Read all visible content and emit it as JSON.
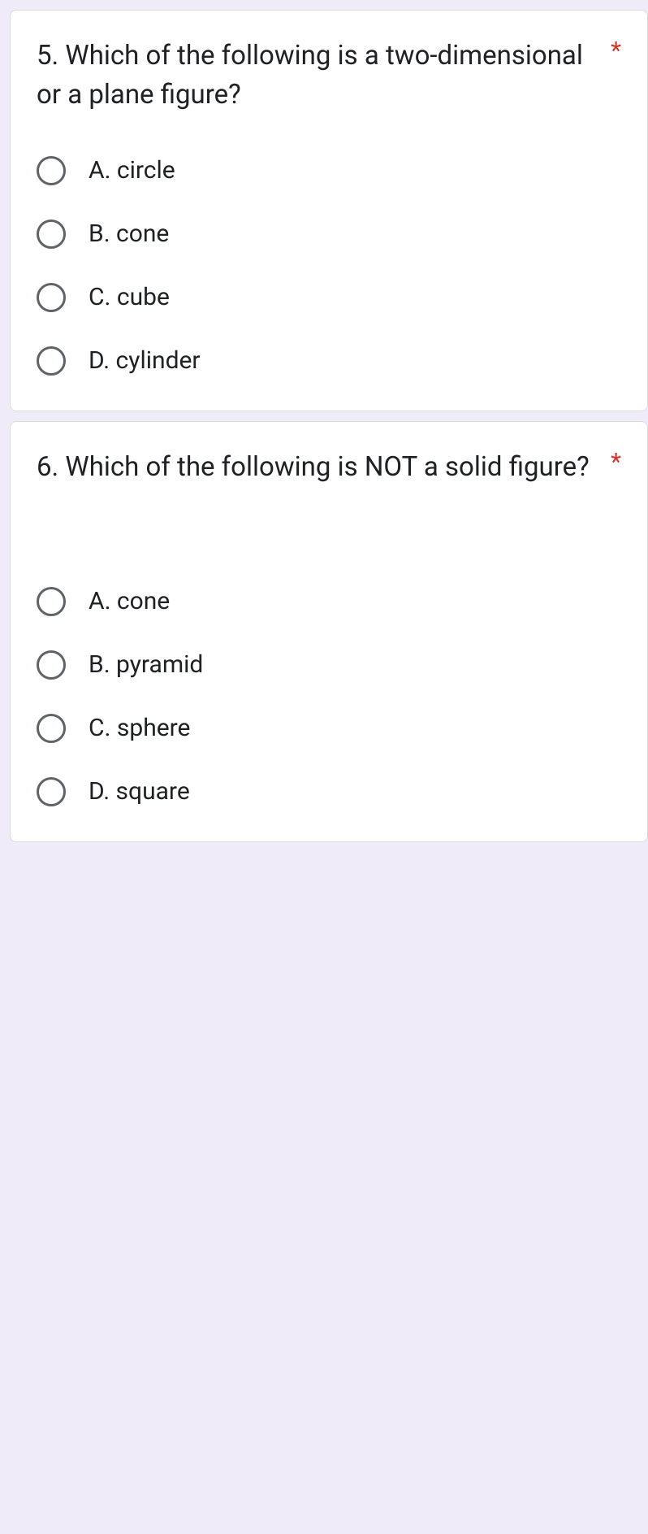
{
  "questions": [
    {
      "title": "5. Which of the following is a two-dimensional or a plane figure?",
      "required_mark": "*",
      "extra_gap": false,
      "options": [
        "A. circle",
        "B. cone",
        "C. cube",
        "D. cylinder"
      ]
    },
    {
      "title": "6. Which of the following is NOT a solid figure?",
      "required_mark": "*",
      "extra_gap": true,
      "options": [
        "A.  cone",
        "B. pyramid",
        "C. sphere",
        "D. square"
      ]
    }
  ],
  "colors": {
    "background": "#f0ebf8",
    "card_bg": "#ffffff",
    "card_border": "#dadce0",
    "text": "#202124",
    "required": "#d93025",
    "radio_border": "#5f6368"
  }
}
